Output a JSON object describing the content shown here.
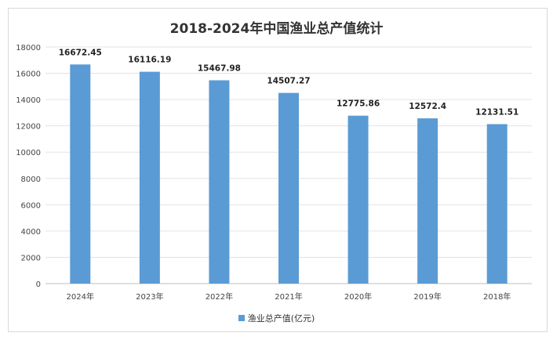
{
  "chart_data": {
    "type": "bar",
    "title": "2018-2024年中国渔业总产值统计",
    "categories": [
      "2024年",
      "2023年",
      "2022年",
      "2021年",
      "2020年",
      "2019年",
      "2018年"
    ],
    "series": [
      {
        "name": "渔业总产值(亿元)",
        "values": [
          16672.45,
          16116.19,
          15467.98,
          14507.27,
          12775.86,
          12572.4,
          12131.51
        ],
        "color": "#5b9bd5"
      }
    ],
    "data_labels": [
      "16672.45",
      "16116.19",
      "15467.98",
      "14507.27",
      "12775.86",
      "12572.4",
      "12131.51"
    ],
    "ylim": [
      0,
      18000
    ],
    "yticks": [
      0,
      2000,
      4000,
      6000,
      8000,
      10000,
      12000,
      14000,
      16000,
      18000
    ],
    "grid": true,
    "legend": "bottom"
  }
}
